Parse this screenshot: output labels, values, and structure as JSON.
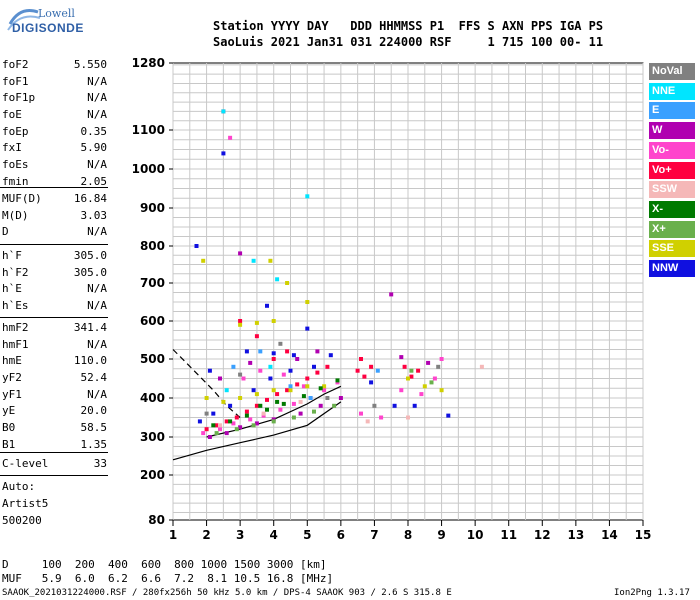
{
  "logo": {
    "line1": "Lowell",
    "line2": "DIGISONDE"
  },
  "header": {
    "row1": "Station YYYY DAY   DDD HHMMSS P1  FFS S AXN PPS IGA PS",
    "row2": "SaoLuis 2021 Jan31 031 224000 RSF     1 715 100 00- 11"
  },
  "params_group1": [
    {
      "name": "foF2",
      "value": "5.550"
    },
    {
      "name": "foF1",
      "value": "N/A"
    },
    {
      "name": "foF1p",
      "value": "N/A"
    },
    {
      "name": "foE",
      "value": "N/A"
    },
    {
      "name": "foEp",
      "value": "0.35"
    },
    {
      "name": "fxI",
      "value": "5.90"
    },
    {
      "name": "foEs",
      "value": "N/A"
    },
    {
      "name": "fmin",
      "value": "2.05"
    }
  ],
  "params_group2": [
    {
      "name": "MUF(D)",
      "value": "16.84"
    },
    {
      "name": "M(D)",
      "value": "3.03"
    },
    {
      "name": "D",
      "value": "N/A"
    }
  ],
  "params_group3": [
    {
      "name": "h`F",
      "value": "305.0"
    },
    {
      "name": "h`F2",
      "value": "305.0"
    },
    {
      "name": "h`E",
      "value": "N/A"
    },
    {
      "name": "h`Es",
      "value": "N/A"
    }
  ],
  "params_group4": [
    {
      "name": "hmF2",
      "value": "341.4"
    },
    {
      "name": "hmF1",
      "value": "N/A"
    },
    {
      "name": "hmE",
      "value": "110.0"
    },
    {
      "name": "yF2",
      "value": "52.4"
    },
    {
      "name": "yF1",
      "value": "N/A"
    },
    {
      "name": "yE",
      "value": "20.0"
    },
    {
      "name": "B0",
      "value": "58.5"
    },
    {
      "name": "B1",
      "value": "1.35"
    }
  ],
  "params_group5": [
    {
      "name": "C-level",
      "value": "33"
    }
  ],
  "auto": {
    "line1": "Auto:",
    "line2": "Artist5",
    "line3": "500200"
  },
  "legend": [
    {
      "label": "NoVal",
      "color": "#808080"
    },
    {
      "label": "NNE",
      "color": "#00e5ff"
    },
    {
      "label": "E",
      "color": "#3aa0ff"
    },
    {
      "label": "W",
      "color": "#b000b0"
    },
    {
      "label": "Vo-",
      "color": "#ff44cc"
    },
    {
      "label": "Vo+",
      "color": "#ff0040"
    },
    {
      "label": "SSW",
      "color": "#f5b8b8"
    },
    {
      "label": "X-",
      "color": "#007a00"
    },
    {
      "label": "X+",
      "color": "#6ab04c"
    },
    {
      "label": "SSE",
      "color": "#d0d000"
    },
    {
      "label": "NNW",
      "color": "#1010e0"
    }
  ],
  "footer": {
    "d_row": "D     100  200  400  600  800 1000 1500 3000 [km]",
    "muf_row": "MUF   5.9  6.0  6.2  6.6  7.2  8.1 10.5 16.8 [MHz]",
    "info": "SAAOK_2021031224000.RSF / 280fx256h 50 kHz 5.0 km / DPS-4 SAAOK 903 / 2.6 S 315.8 E",
    "version": "Ion2Png 1.3.17"
  },
  "chart_data": {
    "type": "scatter",
    "title": "",
    "xlabel": "",
    "ylabel": "",
    "xlim": [
      1,
      15
    ],
    "ylim": [
      80,
      1280
    ],
    "x_ticks": [
      1,
      2,
      3,
      4,
      5,
      6,
      7,
      8,
      9,
      10,
      11,
      12,
      13,
      14,
      15
    ],
    "y_ticks": [
      80,
      200,
      300,
      400,
      500,
      600,
      700,
      800,
      900,
      1000,
      1100,
      1280
    ],
    "y_scale": "nonlinear",
    "grid": true,
    "series": [
      {
        "color": "#ff0040",
        "points": [
          [
            2.0,
            320
          ],
          [
            2.3,
            330
          ],
          [
            2.6,
            340
          ],
          [
            2.9,
            350
          ],
          [
            3.2,
            365
          ],
          [
            3.5,
            380
          ],
          [
            3.8,
            395
          ],
          [
            4.1,
            410
          ],
          [
            4.4,
            420
          ],
          [
            4.7,
            435
          ],
          [
            5.0,
            450
          ],
          [
            5.3,
            465
          ],
          [
            5.6,
            480
          ],
          [
            6.5,
            470
          ],
          [
            6.7,
            455
          ],
          [
            6.9,
            480
          ],
          [
            6.6,
            500
          ],
          [
            7.9,
            480
          ],
          [
            8.1,
            455
          ],
          [
            8.3,
            470
          ],
          [
            4.0,
            500
          ],
          [
            4.4,
            520
          ],
          [
            3.5,
            560
          ],
          [
            3.0,
            600
          ],
          [
            2.5,
            1150
          ]
        ]
      },
      {
        "color": "#ff44cc",
        "points": [
          [
            1.9,
            310
          ],
          [
            2.4,
            320
          ],
          [
            2.8,
            335
          ],
          [
            3.3,
            345
          ],
          [
            3.7,
            355
          ],
          [
            4.2,
            370
          ],
          [
            4.6,
            385
          ],
          [
            5.1,
            400
          ],
          [
            5.5,
            420
          ],
          [
            5.9,
            440
          ],
          [
            6.6,
            360
          ],
          [
            7.2,
            350
          ],
          [
            7.8,
            420
          ],
          [
            8.4,
            410
          ],
          [
            8.8,
            450
          ],
          [
            9.0,
            500
          ],
          [
            3.1,
            450
          ],
          [
            3.6,
            470
          ],
          [
            4.3,
            460
          ],
          [
            4.9,
            430
          ],
          [
            2.7,
            1080
          ]
        ]
      },
      {
        "color": "#1010e0",
        "points": [
          [
            1.8,
            340
          ],
          [
            2.2,
            360
          ],
          [
            2.7,
            380
          ],
          [
            3.4,
            420
          ],
          [
            3.9,
            450
          ],
          [
            4.5,
            470
          ],
          [
            5.2,
            480
          ],
          [
            5.7,
            510
          ],
          [
            3.2,
            520
          ],
          [
            4.0,
            515
          ],
          [
            4.6,
            510
          ],
          [
            6.9,
            440
          ],
          [
            7.6,
            380
          ],
          [
            8.2,
            380
          ],
          [
            9.2,
            355
          ],
          [
            1.7,
            800
          ],
          [
            2.5,
            1040
          ],
          [
            2.1,
            470
          ],
          [
            3.8,
            640
          ],
          [
            5.0,
            580
          ]
        ]
      },
      {
        "color": "#b000b0",
        "points": [
          [
            2.1,
            300
          ],
          [
            2.6,
            310
          ],
          [
            3.0,
            325
          ],
          [
            3.5,
            335
          ],
          [
            4.0,
            345
          ],
          [
            4.8,
            360
          ],
          [
            5.4,
            380
          ],
          [
            6.0,
            400
          ],
          [
            3.3,
            490
          ],
          [
            4.7,
            500
          ],
          [
            5.3,
            520
          ],
          [
            7.8,
            505
          ],
          [
            8.6,
            490
          ],
          [
            7.5,
            670
          ],
          [
            3.0,
            780
          ],
          [
            2.4,
            450
          ]
        ]
      },
      {
        "color": "#d0d000",
        "points": [
          [
            2.0,
            400
          ],
          [
            2.5,
            390
          ],
          [
            3.0,
            400
          ],
          [
            3.5,
            410
          ],
          [
            4.0,
            420
          ],
          [
            4.5,
            420
          ],
          [
            5.0,
            430
          ],
          [
            5.5,
            430
          ],
          [
            3.0,
            590
          ],
          [
            3.5,
            595
          ],
          [
            4.0,
            600
          ],
          [
            3.9,
            760
          ],
          [
            4.4,
            700
          ],
          [
            5.0,
            650
          ],
          [
            8.0,
            450
          ],
          [
            8.5,
            430
          ],
          [
            9.0,
            420
          ],
          [
            1.9,
            760
          ]
        ]
      },
      {
        "color": "#007a00",
        "points": [
          [
            2.2,
            330
          ],
          [
            2.7,
            340
          ],
          [
            3.2,
            355
          ],
          [
            3.8,
            370
          ],
          [
            4.3,
            385
          ],
          [
            4.9,
            405
          ],
          [
            5.4,
            425
          ],
          [
            5.9,
            445
          ],
          [
            3.6,
            380
          ],
          [
            4.1,
            390
          ]
        ]
      },
      {
        "color": "#6ab04c",
        "points": [
          [
            2.3,
            310
          ],
          [
            2.9,
            320
          ],
          [
            3.4,
            330
          ],
          [
            4.0,
            340
          ],
          [
            4.6,
            350
          ],
          [
            5.2,
            365
          ],
          [
            5.8,
            380
          ],
          [
            8.1,
            470
          ],
          [
            8.7,
            440
          ]
        ]
      },
      {
        "color": "#00e5ff",
        "points": [
          [
            2.5,
            1150
          ],
          [
            3.4,
            760
          ],
          [
            4.1,
            710
          ],
          [
            5.0,
            930
          ],
          [
            2.6,
            420
          ],
          [
            3.9,
            480
          ]
        ]
      },
      {
        "color": "#3aa0ff",
        "points": [
          [
            2.8,
            480
          ],
          [
            3.6,
            520
          ],
          [
            4.5,
            430
          ],
          [
            5.1,
            400
          ],
          [
            7.1,
            470
          ]
        ]
      },
      {
        "color": "#808080",
        "points": [
          [
            2.0,
            360
          ],
          [
            3.0,
            460
          ],
          [
            4.2,
            540
          ],
          [
            5.6,
            400
          ],
          [
            7.0,
            380
          ],
          [
            8.9,
            480
          ]
        ]
      },
      {
        "color": "#f5b8b8",
        "points": [
          [
            2.4,
            330
          ],
          [
            3.7,
            360
          ],
          [
            4.8,
            390
          ],
          [
            6.8,
            340
          ],
          [
            8.0,
            350
          ],
          [
            10.2,
            480
          ]
        ]
      }
    ],
    "curves": [
      {
        "style": "solid",
        "color": "#000000",
        "points": [
          [
            1.0,
            240
          ],
          [
            2.0,
            265
          ],
          [
            3.0,
            285
          ],
          [
            4.0,
            305
          ],
          [
            5.0,
            330
          ],
          [
            6.0,
            390
          ]
        ]
      },
      {
        "style": "solid",
        "color": "#000000",
        "points": [
          [
            2.0,
            300
          ],
          [
            3.0,
            320
          ],
          [
            4.0,
            345
          ],
          [
            5.0,
            385
          ],
          [
            5.5,
            410
          ],
          [
            6.0,
            430
          ]
        ]
      },
      {
        "style": "dashed",
        "color": "#000000",
        "points": [
          [
            1.0,
            525
          ],
          [
            1.4,
            490
          ],
          [
            1.8,
            455
          ],
          [
            2.2,
            420
          ],
          [
            2.6,
            380
          ],
          [
            3.0,
            350
          ]
        ]
      }
    ]
  }
}
